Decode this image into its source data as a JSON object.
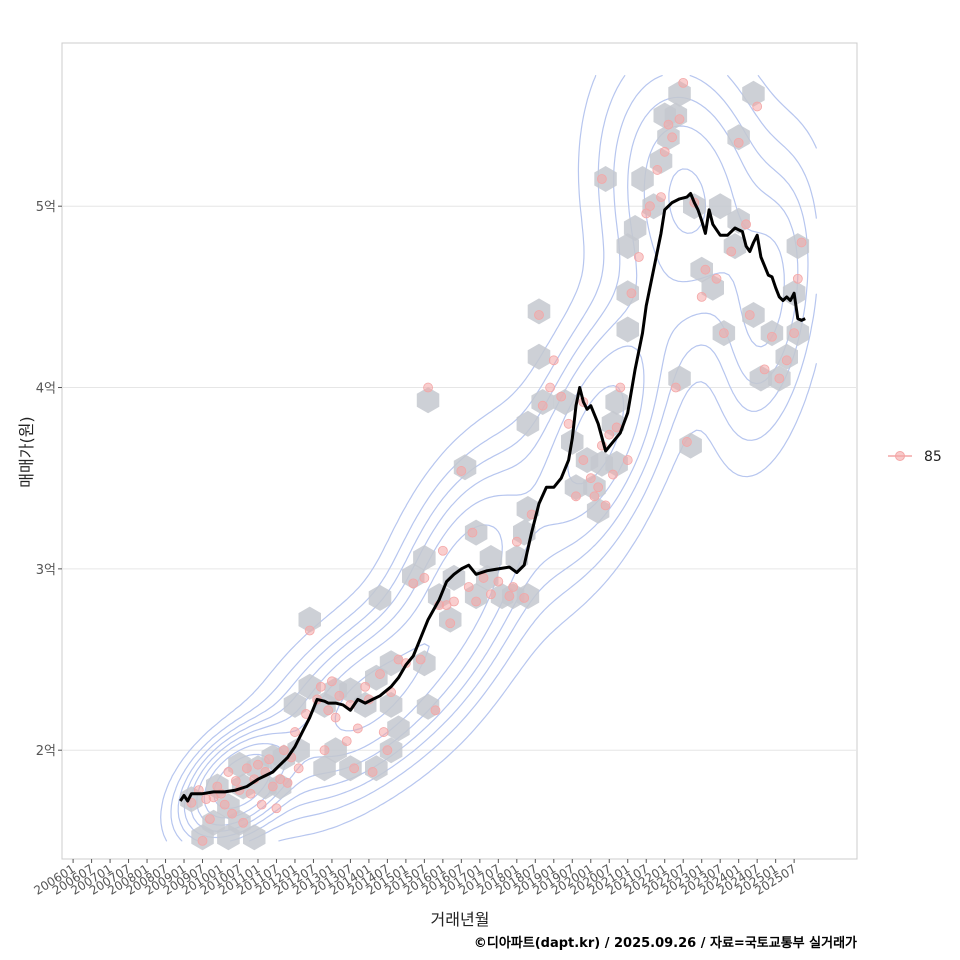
{
  "chart_data": {
    "type": "line",
    "title": "",
    "xlabel": "거래년월",
    "ylabel": "매매가(원)",
    "caption": "©디아파트(dapt.kr) / 2025.09.26 / 자료=국토교통부 실거래가",
    "x_ticks": [
      "200601",
      "200607",
      "200701",
      "200707",
      "200801",
      "200807",
      "200901",
      "200907",
      "201001",
      "201007",
      "201101",
      "201107",
      "201201",
      "201207",
      "201301",
      "201307",
      "201401",
      "201407",
      "201501",
      "201507",
      "201601",
      "201607",
      "201701",
      "201707",
      "201801",
      "201807",
      "201901",
      "201907",
      "202001",
      "202007",
      "202101",
      "202107",
      "202201",
      "202207",
      "202301",
      "202307",
      "202401",
      "202407",
      "202501",
      "202507"
    ],
    "y_ticks": [
      {
        "value": 2.0,
        "label": "2억"
      },
      {
        "value": 3.0,
        "label": "3억"
      },
      {
        "value": 4.0,
        "label": "4억"
      },
      {
        "value": 5.0,
        "label": "5억"
      }
    ],
    "xlim": [
      2005.7,
      2027.2
    ],
    "ylim": [
      1.4,
      5.9
    ],
    "legend": {
      "position": "right",
      "entries": [
        {
          "label": "85",
          "color": "#f4a6a6"
        }
      ]
    },
    "colors": {
      "line": "#000000",
      "points": "#f4a6a6",
      "hex": "#c4c8cf",
      "contour": "#b7c6ef",
      "grid": "#e6e6e6",
      "border": "#cccccc"
    },
    "series": [
      {
        "name": "moving average",
        "x": [
          2008.9,
          2009.0,
          2009.1,
          2009.2,
          2009.5,
          2009.8,
          2010.1,
          2010.4,
          2010.7,
          2011.0,
          2011.2,
          2011.4,
          2011.6,
          2011.8,
          2012.0,
          2012.2,
          2012.4,
          2012.6,
          2012.8,
          2012.9,
          2013.1,
          2013.3,
          2013.5,
          2013.7,
          2013.9,
          2014.1,
          2014.3,
          2014.6,
          2014.8,
          2015.0,
          2015.2,
          2015.4,
          2015.6,
          2015.9,
          2016.1,
          2016.3,
          2016.5,
          2016.7,
          2016.9,
          2017.2,
          2017.5,
          2017.8,
          2018.0,
          2018.2,
          2018.4,
          2018.6,
          2018.8,
          2019.0,
          2019.2,
          2019.4,
          2019.5,
          2019.6,
          2019.7,
          2019.8,
          2019.9,
          2020.0,
          2020.2,
          2020.4,
          2020.6,
          2020.8,
          2021.0,
          2021.2,
          2021.4,
          2021.5,
          2021.7,
          2021.9,
          2022.0,
          2022.2,
          2022.4,
          2022.6,
          2022.7,
          2022.8,
          2022.9,
          2023.0,
          2023.1,
          2023.2,
          2023.3,
          2023.5,
          2023.7,
          2023.9,
          2024.0,
          2024.1,
          2024.2,
          2024.3,
          2024.4,
          2024.5,
          2024.6,
          2024.8,
          2024.9,
          2025.0,
          2025.1,
          2025.2,
          2025.3,
          2025.4,
          2025.5,
          2025.6,
          2025.7,
          2025.8
        ],
        "values": [
          1.72,
          1.75,
          1.72,
          1.76,
          1.76,
          1.77,
          1.77,
          1.78,
          1.8,
          1.84,
          1.86,
          1.88,
          1.92,
          1.96,
          2.02,
          2.1,
          2.18,
          2.28,
          2.27,
          2.26,
          2.26,
          2.25,
          2.22,
          2.28,
          2.26,
          2.28,
          2.3,
          2.35,
          2.4,
          2.47,
          2.52,
          2.62,
          2.72,
          2.83,
          2.93,
          2.97,
          3.0,
          3.02,
          2.97,
          2.99,
          3.0,
          3.01,
          2.98,
          3.02,
          3.2,
          3.36,
          3.45,
          3.45,
          3.5,
          3.6,
          3.72,
          3.9,
          4.0,
          3.92,
          3.88,
          3.9,
          3.8,
          3.65,
          3.7,
          3.75,
          3.86,
          4.1,
          4.3,
          4.45,
          4.65,
          4.85,
          4.98,
          5.02,
          5.04,
          5.05,
          5.07,
          5.02,
          4.98,
          4.92,
          4.85,
          4.98,
          4.9,
          4.84,
          4.84,
          4.88,
          4.87,
          4.86,
          4.78,
          4.75,
          4.8,
          4.84,
          4.72,
          4.62,
          4.61,
          4.55,
          4.5,
          4.48,
          4.5,
          4.48,
          4.52,
          4.38,
          4.37,
          4.38
        ]
      }
    ],
    "points": [
      {
        "x": 2009.2,
        "y": 1.71
      },
      {
        "x": 2009.4,
        "y": 1.78
      },
      {
        "x": 2009.5,
        "y": 1.5
      },
      {
        "x": 2009.6,
        "y": 1.73
      },
      {
        "x": 2009.7,
        "y": 1.62
      },
      {
        "x": 2009.8,
        "y": 1.74
      },
      {
        "x": 2009.9,
        "y": 1.8
      },
      {
        "x": 2010.0,
        "y": 1.76
      },
      {
        "x": 2010.1,
        "y": 1.7
      },
      {
        "x": 2010.2,
        "y": 1.88
      },
      {
        "x": 2010.3,
        "y": 1.65
      },
      {
        "x": 2010.4,
        "y": 1.83
      },
      {
        "x": 2010.5,
        "y": 1.78
      },
      {
        "x": 2010.6,
        "y": 1.6
      },
      {
        "x": 2010.7,
        "y": 1.9
      },
      {
        "x": 2010.8,
        "y": 1.76
      },
      {
        "x": 2010.9,
        "y": 1.84
      },
      {
        "x": 2011.0,
        "y": 1.92
      },
      {
        "x": 2011.1,
        "y": 1.7
      },
      {
        "x": 2011.2,
        "y": 1.88
      },
      {
        "x": 2011.3,
        "y": 1.95
      },
      {
        "x": 2011.4,
        "y": 1.8
      },
      {
        "x": 2011.5,
        "y": 1.68
      },
      {
        "x": 2011.6,
        "y": 1.84
      },
      {
        "x": 2011.7,
        "y": 2.0
      },
      {
        "x": 2011.8,
        "y": 1.82
      },
      {
        "x": 2011.9,
        "y": 1.96
      },
      {
        "x": 2012.0,
        "y": 2.1
      },
      {
        "x": 2012.1,
        "y": 1.9
      },
      {
        "x": 2012.3,
        "y": 2.2
      },
      {
        "x": 2012.4,
        "y": 2.66
      },
      {
        "x": 2012.6,
        "y": 2.28
      },
      {
        "x": 2012.7,
        "y": 2.35
      },
      {
        "x": 2012.8,
        "y": 2.0
      },
      {
        "x": 2012.9,
        "y": 2.22
      },
      {
        "x": 2013.0,
        "y": 2.38
      },
      {
        "x": 2013.1,
        "y": 2.18
      },
      {
        "x": 2013.2,
        "y": 2.3
      },
      {
        "x": 2013.4,
        "y": 2.05
      },
      {
        "x": 2013.5,
        "y": 2.25
      },
      {
        "x": 2013.6,
        "y": 1.9
      },
      {
        "x": 2013.7,
        "y": 2.12
      },
      {
        "x": 2013.9,
        "y": 2.35
      },
      {
        "x": 2014.0,
        "y": 2.28
      },
      {
        "x": 2014.1,
        "y": 1.88
      },
      {
        "x": 2014.3,
        "y": 2.42
      },
      {
        "x": 2014.4,
        "y": 2.1
      },
      {
        "x": 2014.5,
        "y": 2.0
      },
      {
        "x": 2014.6,
        "y": 2.32
      },
      {
        "x": 2014.8,
        "y": 2.5
      },
      {
        "x": 2015.0,
        "y": 2.48
      },
      {
        "x": 2015.2,
        "y": 2.92
      },
      {
        "x": 2015.4,
        "y": 2.5
      },
      {
        "x": 2015.5,
        "y": 2.95
      },
      {
        "x": 2015.6,
        "y": 4.0
      },
      {
        "x": 2015.8,
        "y": 2.22
      },
      {
        "x": 2015.9,
        "y": 2.8
      },
      {
        "x": 2016.0,
        "y": 3.1
      },
      {
        "x": 2016.1,
        "y": 2.8
      },
      {
        "x": 2016.2,
        "y": 2.7
      },
      {
        "x": 2016.3,
        "y": 2.82
      },
      {
        "x": 2016.5,
        "y": 3.54
      },
      {
        "x": 2016.7,
        "y": 2.9
      },
      {
        "x": 2016.8,
        "y": 3.2
      },
      {
        "x": 2016.9,
        "y": 2.82
      },
      {
        "x": 2017.1,
        "y": 2.95
      },
      {
        "x": 2017.3,
        "y": 2.86
      },
      {
        "x": 2017.5,
        "y": 2.93
      },
      {
        "x": 2017.8,
        "y": 2.85
      },
      {
        "x": 2017.9,
        "y": 2.9
      },
      {
        "x": 2018.0,
        "y": 3.15
      },
      {
        "x": 2018.2,
        "y": 2.84
      },
      {
        "x": 2018.4,
        "y": 3.3
      },
      {
        "x": 2018.6,
        "y": 4.4
      },
      {
        "x": 2018.7,
        "y": 3.9
      },
      {
        "x": 2018.9,
        "y": 4.0
      },
      {
        "x": 2019.0,
        "y": 4.15
      },
      {
        "x": 2019.2,
        "y": 3.95
      },
      {
        "x": 2019.4,
        "y": 3.8
      },
      {
        "x": 2019.6,
        "y": 3.4
      },
      {
        "x": 2019.8,
        "y": 3.6
      },
      {
        "x": 2020.0,
        "y": 3.5
      },
      {
        "x": 2020.1,
        "y": 3.4
      },
      {
        "x": 2020.2,
        "y": 3.45
      },
      {
        "x": 2020.3,
        "y": 3.68
      },
      {
        "x": 2020.4,
        "y": 3.35
      },
      {
        "x": 2020.5,
        "y": 3.74
      },
      {
        "x": 2020.6,
        "y": 3.52
      },
      {
        "x": 2020.7,
        "y": 3.78
      },
      {
        "x": 2020.8,
        "y": 4.0
      },
      {
        "x": 2021.0,
        "y": 3.6
      },
      {
        "x": 2021.1,
        "y": 4.52
      },
      {
        "x": 2021.3,
        "y": 4.72
      },
      {
        "x": 2021.5,
        "y": 4.96
      },
      {
        "x": 2021.6,
        "y": 5.0
      },
      {
        "x": 2021.8,
        "y": 5.2
      },
      {
        "x": 2021.9,
        "y": 5.05
      },
      {
        "x": 2022.0,
        "y": 5.3
      },
      {
        "x": 2022.1,
        "y": 5.45
      },
      {
        "x": 2022.2,
        "y": 5.38
      },
      {
        "x": 2022.3,
        "y": 4.0
      },
      {
        "x": 2022.4,
        "y": 5.48
      },
      {
        "x": 2022.5,
        "y": 5.68
      },
      {
        "x": 2022.6,
        "y": 3.7
      },
      {
        "x": 2022.8,
        "y": 5.02
      },
      {
        "x": 2023.0,
        "y": 4.5
      },
      {
        "x": 2023.1,
        "y": 4.65
      },
      {
        "x": 2023.4,
        "y": 4.6
      },
      {
        "x": 2023.6,
        "y": 4.3
      },
      {
        "x": 2023.8,
        "y": 4.75
      },
      {
        "x": 2024.0,
        "y": 5.35
      },
      {
        "x": 2024.2,
        "y": 4.9
      },
      {
        "x": 2024.3,
        "y": 4.4
      },
      {
        "x": 2024.5,
        "y": 5.55
      },
      {
        "x": 2024.7,
        "y": 4.1
      },
      {
        "x": 2024.9,
        "y": 4.28
      },
      {
        "x": 2025.1,
        "y": 4.05
      },
      {
        "x": 2025.3,
        "y": 4.15
      },
      {
        "x": 2025.5,
        "y": 4.3
      },
      {
        "x": 2025.6,
        "y": 4.6
      },
      {
        "x": 2025.7,
        "y": 4.8
      },
      {
        "x": 2020.3,
        "y": 5.15
      },
      {
        "x": 2019.8,
        "y": 3.92
      }
    ],
    "hexbins": [
      {
        "x": 2009.2,
        "y": 1.73
      },
      {
        "x": 2009.5,
        "y": 1.52
      },
      {
        "x": 2009.8,
        "y": 1.6
      },
      {
        "x": 2009.9,
        "y": 1.8
      },
      {
        "x": 2010.2,
        "y": 1.52
      },
      {
        "x": 2010.2,
        "y": 1.69
      },
      {
        "x": 2010.5,
        "y": 1.6
      },
      {
        "x": 2010.6,
        "y": 1.8
      },
      {
        "x": 2010.5,
        "y": 1.92
      },
      {
        "x": 2010.9,
        "y": 1.52
      },
      {
        "x": 2011.0,
        "y": 1.9
      },
      {
        "x": 2011.2,
        "y": 1.8
      },
      {
        "x": 2011.4,
        "y": 1.96
      },
      {
        "x": 2011.6,
        "y": 1.8
      },
      {
        "x": 2011.7,
        "y": 1.96
      },
      {
        "x": 2012.1,
        "y": 2.0
      },
      {
        "x": 2012.0,
        "y": 2.25
      },
      {
        "x": 2012.4,
        "y": 2.35
      },
      {
        "x": 2012.4,
        "y": 2.72
      },
      {
        "x": 2012.8,
        "y": 2.25
      },
      {
        "x": 2012.8,
        "y": 1.9
      },
      {
        "x": 2013.1,
        "y": 2.33
      },
      {
        "x": 2013.1,
        "y": 2.0
      },
      {
        "x": 2013.5,
        "y": 2.33
      },
      {
        "x": 2013.5,
        "y": 1.9
      },
      {
        "x": 2013.9,
        "y": 2.25
      },
      {
        "x": 2014.2,
        "y": 2.4
      },
      {
        "x": 2014.2,
        "y": 1.9
      },
      {
        "x": 2014.3,
        "y": 2.84
      },
      {
        "x": 2014.6,
        "y": 2.48
      },
      {
        "x": 2014.6,
        "y": 2.25
      },
      {
        "x": 2014.6,
        "y": 2.0
      },
      {
        "x": 2014.8,
        "y": 2.12
      },
      {
        "x": 2015.2,
        "y": 2.96
      },
      {
        "x": 2015.5,
        "y": 3.06
      },
      {
        "x": 2015.5,
        "y": 2.48
      },
      {
        "x": 2015.6,
        "y": 3.93
      },
      {
        "x": 2015.9,
        "y": 2.85
      },
      {
        "x": 2015.6,
        "y": 2.24
      },
      {
        "x": 2016.2,
        "y": 2.72
      },
      {
        "x": 2016.3,
        "y": 2.95
      },
      {
        "x": 2016.6,
        "y": 3.56
      },
      {
        "x": 2016.9,
        "y": 3.2
      },
      {
        "x": 2016.9,
        "y": 2.85
      },
      {
        "x": 2017.2,
        "y": 2.95
      },
      {
        "x": 2017.3,
        "y": 3.06
      },
      {
        "x": 2017.6,
        "y": 2.85
      },
      {
        "x": 2017.9,
        "y": 2.85
      },
      {
        "x": 2018.0,
        "y": 3.06
      },
      {
        "x": 2018.2,
        "y": 3.2
      },
      {
        "x": 2018.3,
        "y": 2.85
      },
      {
        "x": 2018.3,
        "y": 3.33
      },
      {
        "x": 2018.6,
        "y": 4.42
      },
      {
        "x": 2018.6,
        "y": 4.17
      },
      {
        "x": 2018.3,
        "y": 3.8
      },
      {
        "x": 2018.7,
        "y": 3.92
      },
      {
        "x": 2019.3,
        "y": 3.92
      },
      {
        "x": 2019.5,
        "y": 3.7
      },
      {
        "x": 2019.6,
        "y": 3.45
      },
      {
        "x": 2019.9,
        "y": 3.6
      },
      {
        "x": 2020.1,
        "y": 3.45
      },
      {
        "x": 2020.2,
        "y": 3.32
      },
      {
        "x": 2020.3,
        "y": 3.58
      },
      {
        "x": 2020.4,
        "y": 5.15
      },
      {
        "x": 2020.6,
        "y": 3.8
      },
      {
        "x": 2020.7,
        "y": 3.92
      },
      {
        "x": 2020.7,
        "y": 3.58
      },
      {
        "x": 2021.0,
        "y": 4.32
      },
      {
        "x": 2021.0,
        "y": 4.52
      },
      {
        "x": 2021.0,
        "y": 4.78
      },
      {
        "x": 2021.2,
        "y": 4.88
      },
      {
        "x": 2021.4,
        "y": 5.15
      },
      {
        "x": 2021.7,
        "y": 5.0
      },
      {
        "x": 2021.9,
        "y": 5.25
      },
      {
        "x": 2022.1,
        "y": 5.38
      },
      {
        "x": 2022.3,
        "y": 5.5
      },
      {
        "x": 2022.4,
        "y": 5.62
      },
      {
        "x": 2022.0,
        "y": 5.5
      },
      {
        "x": 2022.4,
        "y": 4.05
      },
      {
        "x": 2022.7,
        "y": 3.68
      },
      {
        "x": 2022.8,
        "y": 5.0
      },
      {
        "x": 2023.0,
        "y": 4.65
      },
      {
        "x": 2023.3,
        "y": 4.55
      },
      {
        "x": 2023.6,
        "y": 4.3
      },
      {
        "x": 2023.5,
        "y": 5.0
      },
      {
        "x": 2023.9,
        "y": 4.78
      },
      {
        "x": 2024.0,
        "y": 4.92
      },
      {
        "x": 2024.0,
        "y": 5.38
      },
      {
        "x": 2024.4,
        "y": 5.62
      },
      {
        "x": 2024.4,
        "y": 4.4
      },
      {
        "x": 2024.6,
        "y": 4.05
      },
      {
        "x": 2024.9,
        "y": 4.3
      },
      {
        "x": 2025.1,
        "y": 4.05
      },
      {
        "x": 2025.3,
        "y": 4.17
      },
      {
        "x": 2025.5,
        "y": 4.52
      },
      {
        "x": 2025.6,
        "y": 4.78
      },
      {
        "x": 2025.6,
        "y": 4.3
      }
    ],
    "density_contours": [
      {
        "level": 1
      },
      {
        "level": 2
      },
      {
        "level": 3
      },
      {
        "level": 4
      },
      {
        "level": 5
      },
      {
        "level": 6
      },
      {
        "level": 7
      },
      {
        "level": 8
      }
    ]
  }
}
